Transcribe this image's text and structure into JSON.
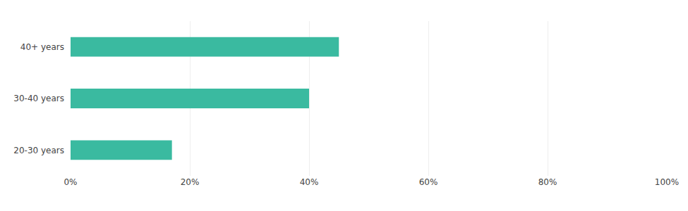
{
  "chart_data": {
    "type": "bar",
    "orientation": "horizontal",
    "categories": [
      "20-30 years",
      "30-40 years",
      "40+ years"
    ],
    "values": [
      17,
      40,
      45
    ],
    "color": "#3abaa0",
    "xlim": [
      0,
      100
    ],
    "xticks": [
      {
        "value": 0,
        "label": "0%"
      },
      {
        "value": 20,
        "label": "20%"
      },
      {
        "value": 40,
        "label": "40%"
      },
      {
        "value": 60,
        "label": "60%"
      },
      {
        "value": 80,
        "label": "80%"
      },
      {
        "value": 100,
        "label": "100%"
      }
    ],
    "grid": true
  }
}
